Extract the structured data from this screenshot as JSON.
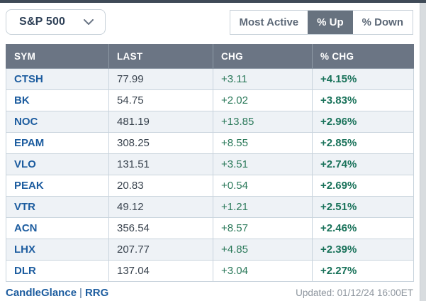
{
  "toolbar": {
    "index_selector": {
      "value": "S&P 500"
    },
    "tabs": [
      {
        "label": "Most Active",
        "selected": false
      },
      {
        "label": "% Up",
        "selected": true
      },
      {
        "label": "% Down",
        "selected": false
      }
    ]
  },
  "table": {
    "columns": [
      "SYM",
      "LAST",
      "CHG",
      "% CHG"
    ],
    "rows": [
      [
        "CTSH",
        "77.99",
        "+3.11",
        "+4.15%"
      ],
      [
        "BK",
        "54.75",
        "+2.02",
        "+3.83%"
      ],
      [
        "NOC",
        "481.19",
        "+13.85",
        "+2.96%"
      ],
      [
        "EPAM",
        "308.25",
        "+8.55",
        "+2.85%"
      ],
      [
        "VLO",
        "131.51",
        "+3.51",
        "+2.74%"
      ],
      [
        "PEAK",
        "20.83",
        "+0.54",
        "+2.69%"
      ],
      [
        "VTR",
        "49.12",
        "+1.21",
        "+2.51%"
      ],
      [
        "ACN",
        "356.54",
        "+8.57",
        "+2.46%"
      ],
      [
        "LHX",
        "207.77",
        "+4.85",
        "+2.39%"
      ],
      [
        "DLR",
        "137.04",
        "+3.04",
        "+2.27%"
      ]
    ]
  },
  "footer": {
    "link_candleglance": "CandleGlance",
    "separator": "|",
    "link_rrg": "RRG",
    "updated": "Updated: 01/12/24 16:00ET"
  },
  "colors": {
    "top_bar": "#3f4a57",
    "header_bg": "#6b7584",
    "selected_tab_bg": "#67727f",
    "row_alt_bg": "#eef2f6",
    "symbol_link_blue": "#1c5c9f",
    "gain_green": "#19725a",
    "muted_text": "#8d959e",
    "border_gray": "#c9d4dd"
  }
}
